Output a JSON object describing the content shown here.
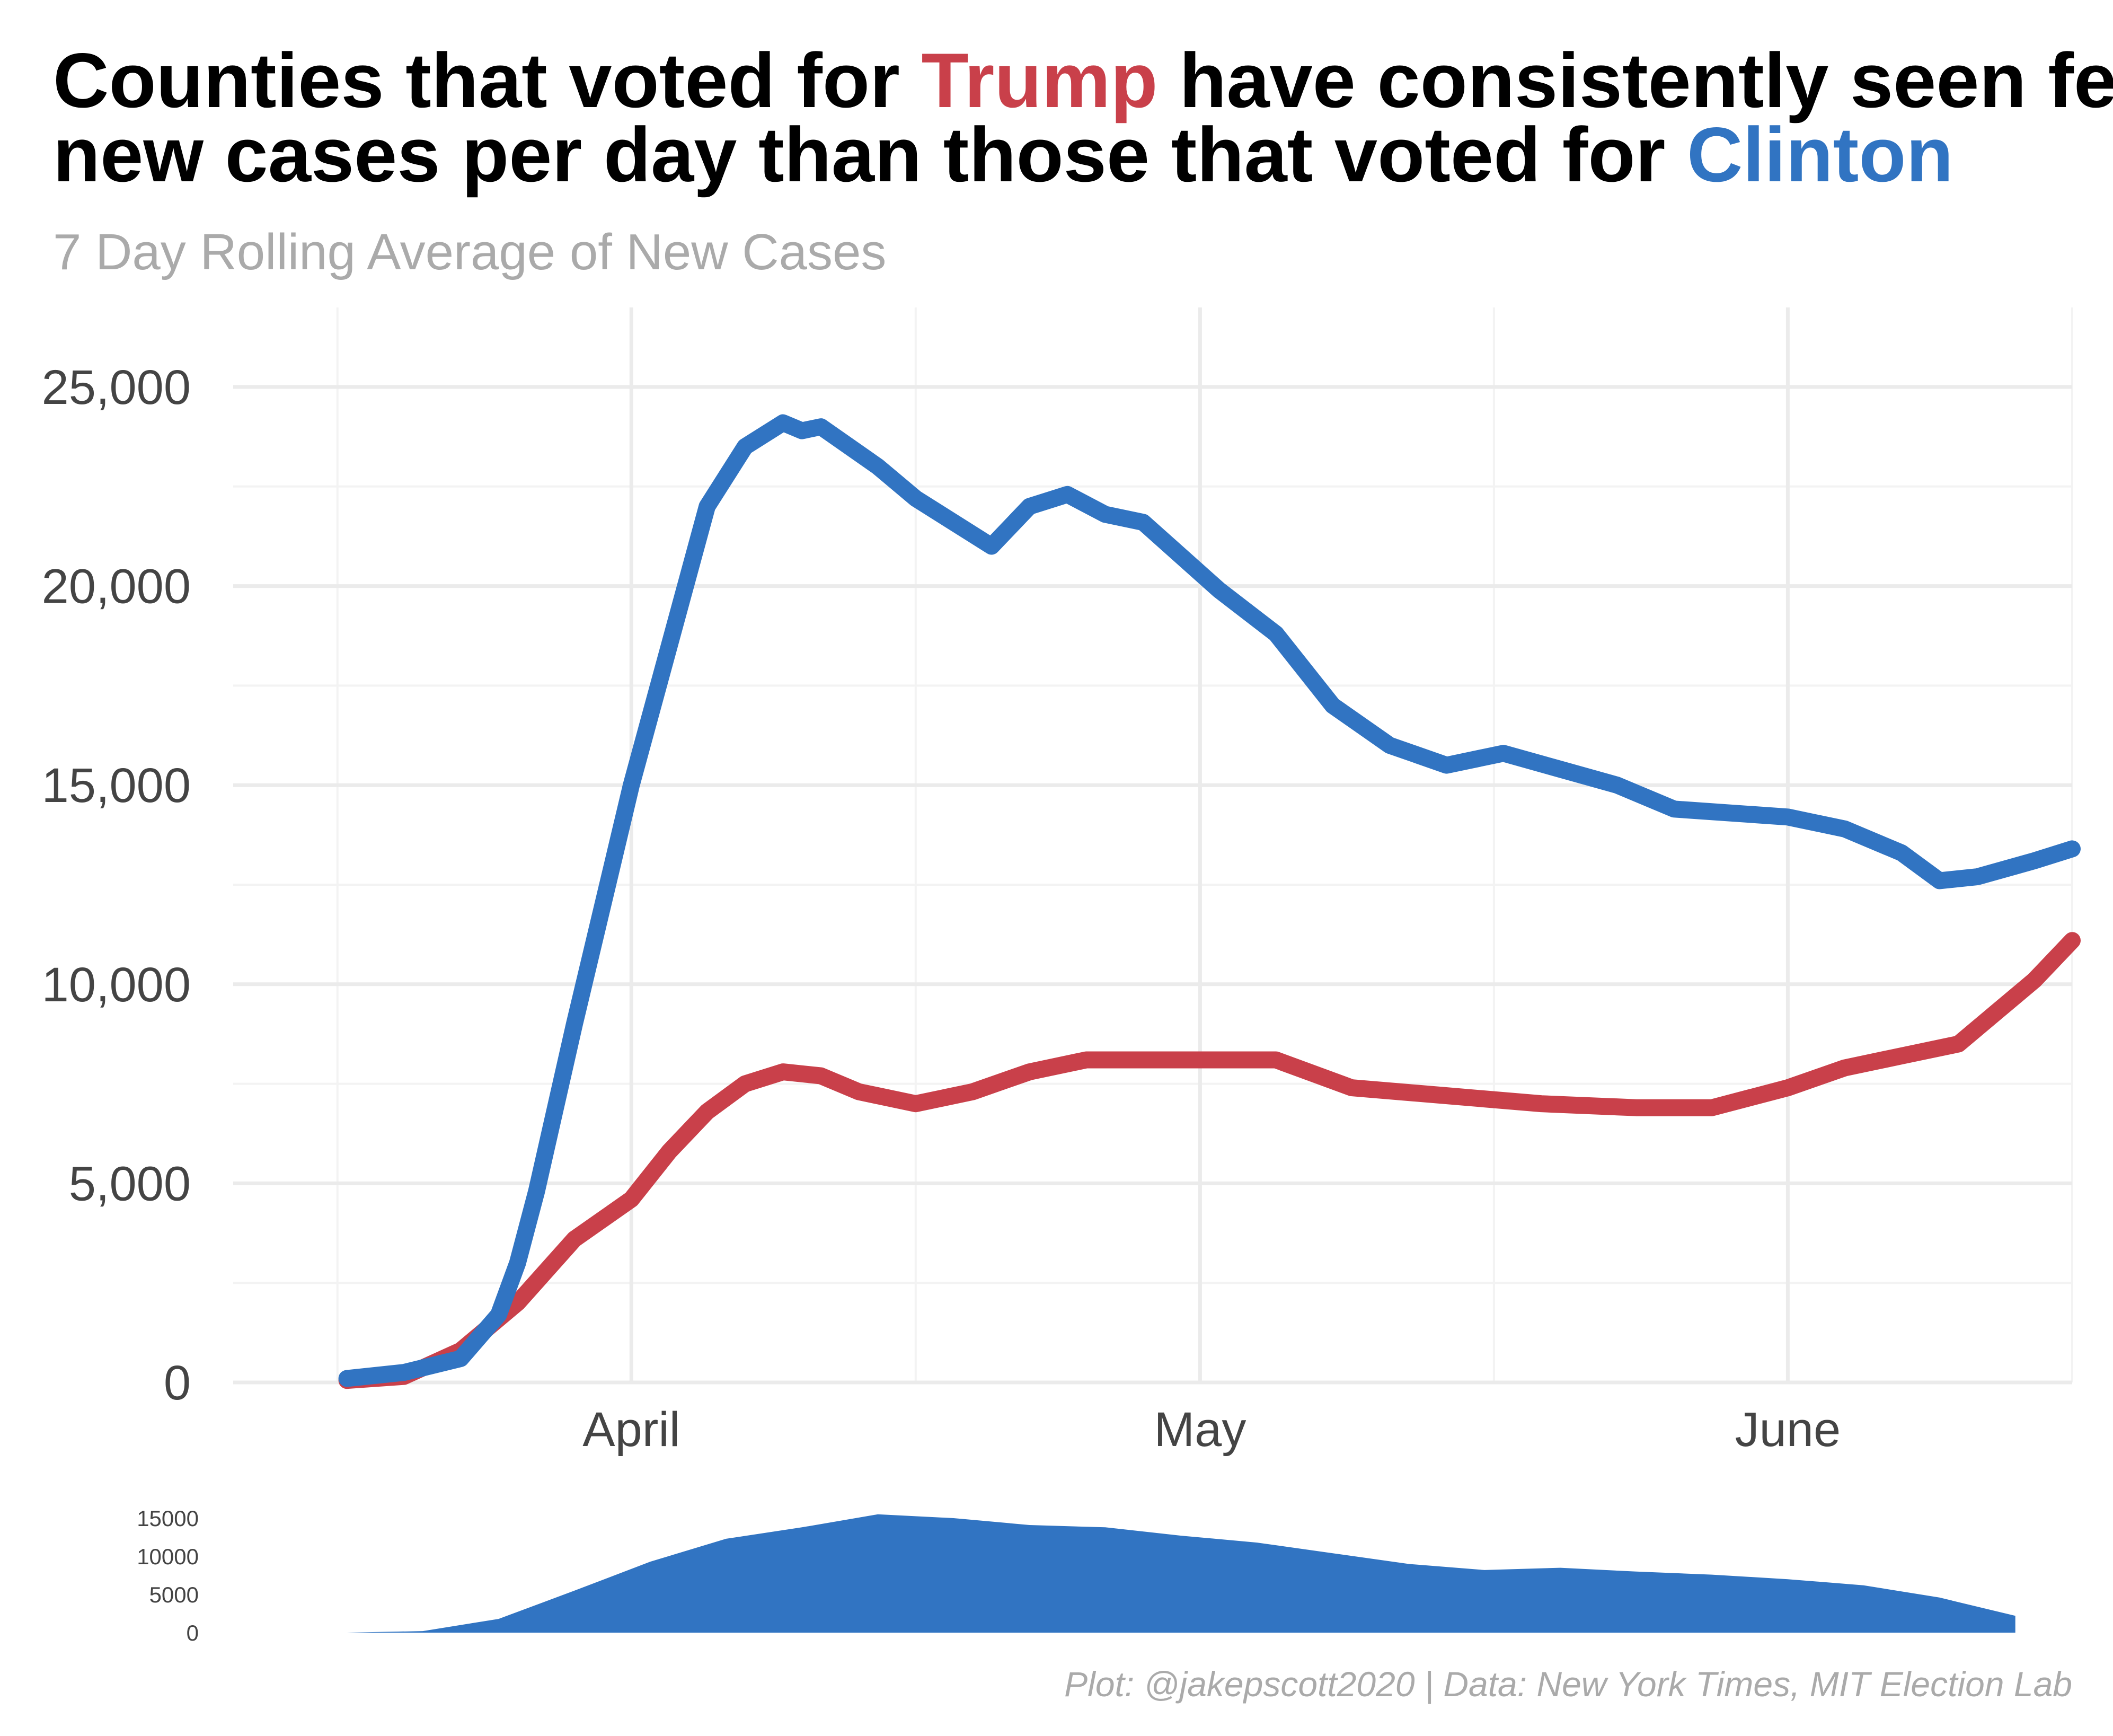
{
  "title": {
    "line1_pre": "Counties that voted for ",
    "line1_trump": "Trump",
    "line1_post": " have consistently seen fewer",
    "line2_pre": "new cases per day than those that voted for ",
    "line2_clinton": "Clinton"
  },
  "subtitle": "7 Day Rolling Average of New Cases",
  "caption": "Plot: @jakepscott2020 | Data: New York Times, MIT Election Lab",
  "colors": {
    "clinton": "#3174c2",
    "trump": "#c9404a",
    "grid": "#ebebeb",
    "text": "#444444"
  },
  "chart_data": [
    {
      "type": "line",
      "title": "Counties that voted for Trump have consistently seen fewer new cases per day than those that voted for Clinton",
      "subtitle": "7 Day Rolling Average of New Cases",
      "x_type": "date",
      "xlim": [
        "2020-03-11",
        "2020-06-16"
      ],
      "x_ticks": [
        {
          "date": "2020-04-01",
          "label": "April"
        },
        {
          "date": "2020-05-01",
          "label": "May"
        },
        {
          "date": "2020-06-01",
          "label": "June"
        }
      ],
      "ylim": [
        0,
        25000
      ],
      "y_ticks": [
        {
          "value": 0,
          "label": "0"
        },
        {
          "value": 5000,
          "label": "5,000"
        },
        {
          "value": 10000,
          "label": "10,000"
        },
        {
          "value": 15000,
          "label": "15,000"
        },
        {
          "value": 20000,
          "label": "20,000"
        },
        {
          "value": 25000,
          "label": "25,000"
        }
      ],
      "grid": true,
      "legend": "none (series colours named in title)",
      "series": [
        {
          "name": "Clinton",
          "color": "#3174c2",
          "x": [
            "2020-03-17",
            "2020-03-20",
            "2020-03-23",
            "2020-03-25",
            "2020-03-26",
            "2020-03-27",
            "2020-03-29",
            "2020-03-31",
            "2020-04-01",
            "2020-04-03",
            "2020-04-05",
            "2020-04-07",
            "2020-04-09",
            "2020-04-10",
            "2020-04-11",
            "2020-04-14",
            "2020-04-16",
            "2020-04-18",
            "2020-04-20",
            "2020-04-22",
            "2020-04-24",
            "2020-04-26",
            "2020-04-28",
            "2020-05-02",
            "2020-05-05",
            "2020-05-08",
            "2020-05-11",
            "2020-05-14",
            "2020-05-17",
            "2020-05-20",
            "2020-05-23",
            "2020-05-26",
            "2020-05-29",
            "2020-06-01",
            "2020-06-04",
            "2020-06-07",
            "2020-06-09",
            "2020-06-11",
            "2020-06-14",
            "2020-06-16"
          ],
          "y": [
            100,
            250,
            600,
            1700,
            3000,
            4800,
            9000,
            13000,
            15000,
            18500,
            22000,
            23500,
            24100,
            23900,
            24000,
            23000,
            22200,
            21600,
            21000,
            22000,
            22300,
            21800,
            21600,
            19900,
            18800,
            17000,
            16000,
            15500,
            15800,
            15400,
            15000,
            14400,
            14300,
            14200,
            13900,
            13300,
            12600,
            12700,
            13100,
            13400
          ]
        },
        {
          "name": "Trump",
          "color": "#c9404a",
          "x": [
            "2020-03-17",
            "2020-03-20",
            "2020-03-23",
            "2020-03-26",
            "2020-03-29",
            "2020-04-01",
            "2020-04-03",
            "2020-04-05",
            "2020-04-07",
            "2020-04-09",
            "2020-04-11",
            "2020-04-13",
            "2020-04-16",
            "2020-04-19",
            "2020-04-22",
            "2020-04-25",
            "2020-05-01",
            "2020-05-05",
            "2020-05-09",
            "2020-05-14",
            "2020-05-19",
            "2020-05-24",
            "2020-05-28",
            "2020-06-01",
            "2020-06-04",
            "2020-06-07",
            "2020-06-10",
            "2020-06-12",
            "2020-06-14",
            "2020-06-16"
          ],
          "y": [
            50,
            150,
            800,
            2000,
            3600,
            4600,
            5800,
            6800,
            7500,
            7800,
            7700,
            7300,
            7000,
            7300,
            7800,
            8100,
            8100,
            8100,
            7400,
            7200,
            7000,
            6900,
            6900,
            7400,
            7900,
            8200,
            8500,
            9300,
            10100,
            11100
          ]
        }
      ]
    },
    {
      "type": "area",
      "x_type": "date",
      "xlim": [
        "2020-03-11",
        "2020-06-16"
      ],
      "ylim": [
        0,
        17000
      ],
      "y_ticks": [
        {
          "value": 0,
          "label": "0"
        },
        {
          "value": 5000,
          "label": "5000"
        },
        {
          "value": 10000,
          "label": "10000"
        },
        {
          "value": 15000,
          "label": "15000"
        }
      ],
      "grid": false,
      "series": [
        {
          "color": "#3174c2",
          "x": [
            "2020-03-17",
            "2020-03-21",
            "2020-03-25",
            "2020-03-29",
            "2020-04-02",
            "2020-04-06",
            "2020-04-10",
            "2020-04-14",
            "2020-04-18",
            "2020-04-22",
            "2020-04-26",
            "2020-04-30",
            "2020-05-04",
            "2020-05-08",
            "2020-05-12",
            "2020-05-16",
            "2020-05-20",
            "2020-05-24",
            "2020-05-28",
            "2020-06-01",
            "2020-06-05",
            "2020-06-09",
            "2020-06-13"
          ],
          "y": [
            0,
            200,
            1800,
            5500,
            9300,
            12300,
            13800,
            15500,
            15000,
            14100,
            13800,
            12700,
            11800,
            10400,
            9000,
            8200,
            8500,
            8000,
            7600,
            7000,
            6200,
            4600,
            2200
          ]
        }
      ]
    }
  ]
}
